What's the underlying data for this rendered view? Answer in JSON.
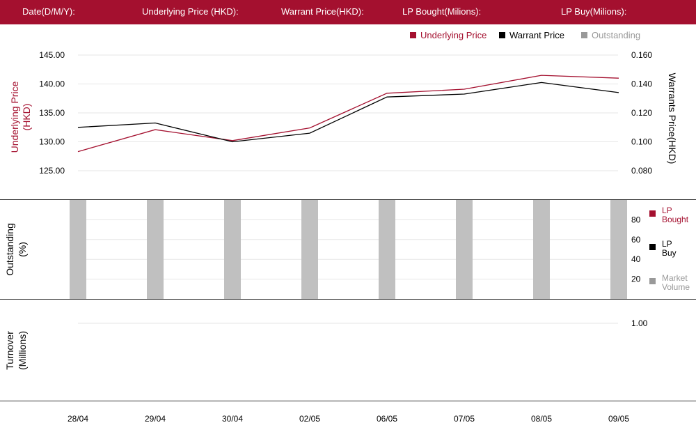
{
  "header": {
    "date_label": "Date(D/M/Y):",
    "underlying_label": "Underlying Price (HKD):",
    "warrant_label": "Warrant  Price(HKD):",
    "lp_bought_label": "LP Bought(Milions):",
    "lp_buy_label": "LP Buy(Milions):"
  },
  "colors": {
    "brand": "#a4102f",
    "warrant": "#000000",
    "outstanding": "#c0c0c0",
    "legend_outstanding": "#999999",
    "grid": "#e6e6e6"
  },
  "top_legend": {
    "underlying": "Underlying Price",
    "warrant": "Warrant  Price",
    "outstanding": "Outstanding"
  },
  "axis_titles": {
    "underlying": "Underlying Price\n(HKD)",
    "warrant": "Warrants  Price(HKD)",
    "outstanding": "Outstanding\n(%)",
    "turnover": "Turnover\n(Millions)"
  },
  "mid_legend": {
    "lp_bought": "LP\nBought",
    "lp_buy": "LP\nBuy",
    "market_volume": "Market\nVolume"
  },
  "chart_data": [
    {
      "type": "line",
      "categories": [
        "28/04",
        "29/04",
        "30/04",
        "02/05",
        "06/05",
        "07/05",
        "08/05",
        "09/05"
      ],
      "series": [
        {
          "name": "Underlying Price",
          "axis": "left",
          "values": [
            128.3,
            132.1,
            130.2,
            132.4,
            138.4,
            139.1,
            141.5,
            141.0
          ]
        },
        {
          "name": "Warrant  Price",
          "axis": "right",
          "values": [
            0.11,
            0.113,
            0.1,
            0.106,
            0.131,
            0.133,
            0.141,
            0.134
          ]
        }
      ],
      "y_left": {
        "ticks": [
          "145.00",
          "140.00",
          "135.00",
          "130.00",
          "125.00"
        ],
        "range": [
          125,
          145
        ]
      },
      "y_right": {
        "ticks": [
          "0.160",
          "0.140",
          "0.120",
          "0.100",
          "0.080"
        ],
        "range": [
          0.08,
          0.16
        ]
      },
      "grid": true
    },
    {
      "type": "bar",
      "categories": [
        "28/04",
        "29/04",
        "30/04",
        "02/05",
        "06/05",
        "07/05",
        "08/05",
        "09/05"
      ],
      "series": [
        {
          "name": "Outstanding",
          "values": [
            100,
            100,
            100,
            100,
            100,
            100,
            100,
            100
          ]
        }
      ],
      "y_right": {
        "ticks": [
          "80",
          "60",
          "40",
          "20"
        ],
        "range": [
          0,
          100
        ]
      },
      "grid": true
    },
    {
      "type": "bar",
      "categories": [
        "28/04",
        "29/04",
        "30/04",
        "02/05",
        "06/05",
        "07/05",
        "08/05",
        "09/05"
      ],
      "series": [],
      "y_right": {
        "ticks": [
          "1.00"
        ]
      },
      "grid": true
    }
  ]
}
